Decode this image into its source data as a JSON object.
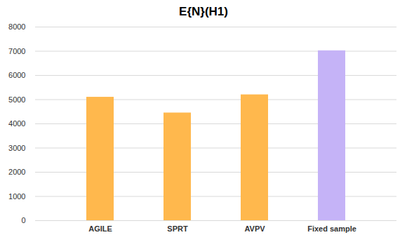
{
  "chart_data": {
    "type": "bar",
    "title": "E{N}(H1)",
    "categories": [
      "AGILE",
      "SPRT",
      "AVPV",
      "Fixed sample"
    ],
    "values": [
      5100,
      4450,
      5200,
      7020
    ],
    "colors": [
      "#ffb84d",
      "#ffb84d",
      "#ffb84d",
      "#c5b3f7"
    ],
    "ylim": [
      0,
      8000
    ],
    "yticks": [
      0,
      1000,
      2000,
      3000,
      4000,
      5000,
      6000,
      7000,
      8000
    ],
    "grid": true
  }
}
